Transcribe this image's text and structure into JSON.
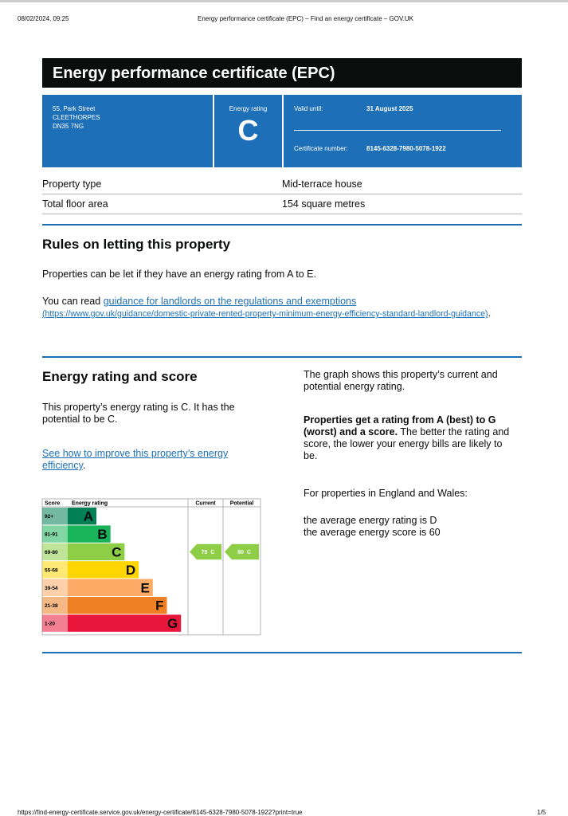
{
  "print_header": {
    "date": "08/02/2024, 09:25",
    "title": "Energy performance certificate (EPC) – Find an energy certificate – GOV.UK"
  },
  "header": {
    "title": "Energy performance certificate (EPC)"
  },
  "summary": {
    "address": [
      "55, Park Street",
      "CLEETHORPES",
      "DN35 7NG"
    ],
    "rating_label": "Energy rating",
    "rating": "C",
    "valid_label": "Valid until:",
    "valid_date": "31 August 2025",
    "cert_label": "Certificate number:",
    "cert_number": "8145-6328-7980-5078-1922"
  },
  "property_table": {
    "rows": [
      [
        "Property type",
        "Mid-terrace house"
      ],
      [
        "Total floor area",
        "154 square metres"
      ]
    ]
  },
  "rules": {
    "heading": "Rules on letting this property",
    "paragraph": "Properties can be let if they have an energy rating from A to E.",
    "read_prefix": "You can read ",
    "link_text": "guidance for landlords on the regulations and exemptions",
    "link_url": "(https://www.gov.uk/guidance/domestic-private-rented-property-minimum-energy-efficiency-standard-landlord-guidance)",
    "read_suffix": "."
  },
  "rating_section": {
    "heading": "Energy rating and score",
    "paragraph": "This property’s energy rating is C. It has the potential to be C.",
    "link_text": "See how to improve this property’s energy efficiency",
    "link_suffix": ".",
    "right": {
      "intro": "The graph shows this property’s current and potential energy rating.",
      "bold": "Properties get a rating from A (best) to G (worst) and a score.",
      "rest": " The better the rating and score, the lower your energy bills are likely to be.",
      "region": "For properties in England and Wales:",
      "avg_rating": "the average energy rating is D",
      "avg_score": "the average energy score is 60"
    }
  },
  "epc_graph": {
    "headers": [
      "Score",
      "Energy rating",
      "Current",
      "Potential"
    ],
    "bands": [
      {
        "score": "92+",
        "letter": "A",
        "color": "#008054"
      },
      {
        "score": "81-91",
        "letter": "B",
        "color": "#19b459"
      },
      {
        "score": "69-80",
        "letter": "C",
        "color": "#8dce46"
      },
      {
        "score": "55-68",
        "letter": "D",
        "color": "#ffd500"
      },
      {
        "score": "39-54",
        "letter": "E",
        "color": "#fcaa65"
      },
      {
        "score": "21-38",
        "letter": "F",
        "color": "#ef8023"
      },
      {
        "score": "1-20",
        "letter": "G",
        "color": "#e9153b"
      }
    ],
    "current": {
      "score": 78,
      "band": "C"
    },
    "potential": {
      "score": 80,
      "band": "C"
    }
  },
  "footer": {
    "url": "https://find-energy-certificate.service.gov.uk/energy-certificate/8145-6328-7980-5078-1922?print=true",
    "page": "1/5"
  }
}
